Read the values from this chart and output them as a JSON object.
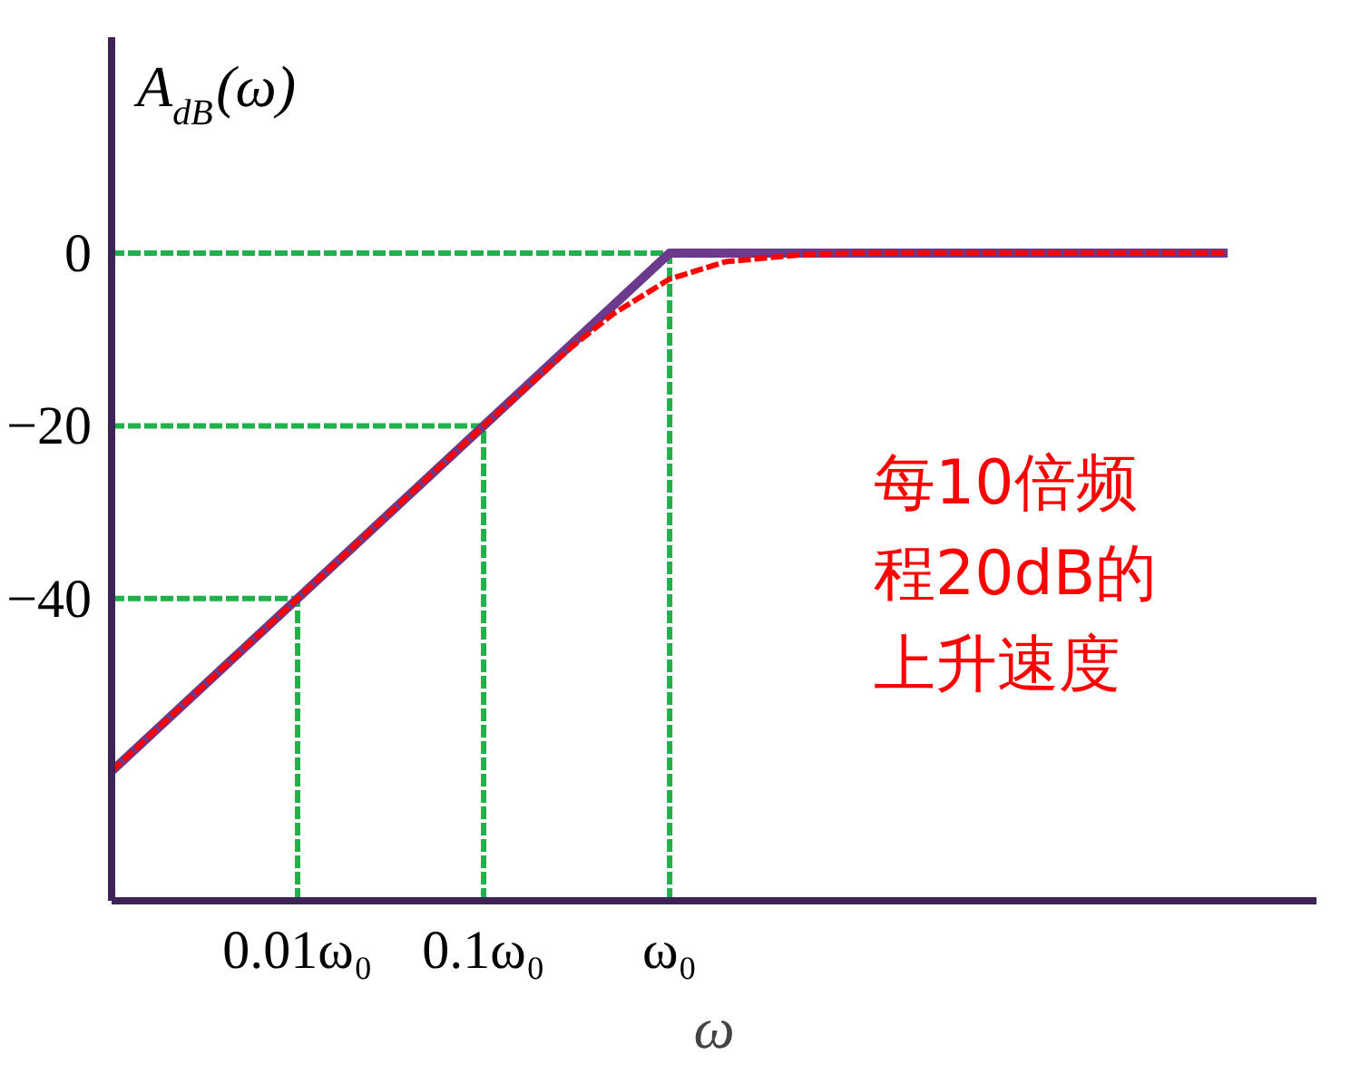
{
  "chart_data": {
    "type": "line",
    "ylabel": "A$_{dB}$(ω)",
    "xlabel": "ω",
    "log": "x",
    "xlim": [
      0.001,
      3000
    ],
    "ylim": [
      -75,
      25
    ],
    "xticks": [
      {
        "value": 0.01,
        "label": "0.01ω₀"
      },
      {
        "value": 0.1,
        "label": "0.1ω₀"
      },
      {
        "value": 1,
        "label": "ω₀"
      }
    ],
    "yticks": [
      -40,
      -20,
      0
    ],
    "grid": false,
    "series": [
      {
        "color": "#6b3a8c",
        "line_style": "solid",
        "x": [
          0.001,
          1,
          1000
        ],
        "values": [
          -60,
          0,
          0
        ]
      },
      {
        "color": "#ff0000",
        "line_style": "dashed",
        "x": [
          0.001,
          0.01,
          0.1,
          0.3,
          0.5,
          1,
          2,
          5,
          10,
          1000
        ],
        "values": [
          -60,
          -40,
          -20,
          -10.8,
          -7,
          -3,
          -1,
          -0.2,
          0,
          0
        ]
      }
    ],
    "ref_lines": [
      {
        "axis": "y",
        "value": 0,
        "color": "#22b04c",
        "line_style": "dashed"
      },
      {
        "axis": "y",
        "value": -20,
        "color": "#22b04c",
        "line_style": "dashed"
      },
      {
        "axis": "y",
        "value": -40,
        "color": "#22b04c",
        "line_style": "dashed"
      },
      {
        "axis": "x",
        "value": 0.01,
        "color": "#22b04c",
        "line_style": "dashed"
      },
      {
        "axis": "x",
        "value": 0.1,
        "color": "#22b04c",
        "line_style": "dashed"
      },
      {
        "axis": "x",
        "value": 1,
        "color": "#22b04c",
        "line_style": "dashed"
      }
    ],
    "annotations": [
      "每10倍频程20dB的上升速度"
    ]
  }
}
